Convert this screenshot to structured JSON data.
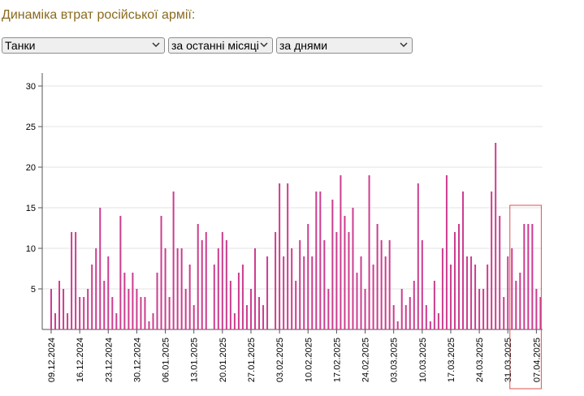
{
  "title": "Динаміка втрат російської армії:",
  "filters": {
    "category": "Танки",
    "period": "за останні місяці",
    "granularity": "за днями"
  },
  "colors": {
    "bar": "#cc3d8f",
    "highlight": "#d9534f",
    "grid": "#e3e3e3",
    "title": "#8a6a1e"
  },
  "chart_data": {
    "type": "bar",
    "ylim": [
      0,
      32
    ],
    "yticks": [
      5,
      10,
      15,
      20,
      25,
      30
    ],
    "grid": true,
    "xticks": [
      {
        "index": 0,
        "label": "09.12.2024"
      },
      {
        "index": 7,
        "label": "16.12.2024"
      },
      {
        "index": 14,
        "label": "23.12.2024"
      },
      {
        "index": 21,
        "label": "30.12.2024"
      },
      {
        "index": 28,
        "label": "06.01.2025"
      },
      {
        "index": 35,
        "label": "13.01.2025"
      },
      {
        "index": 42,
        "label": "20.01.2025"
      },
      {
        "index": 49,
        "label": "27.01.2025"
      },
      {
        "index": 56,
        "label": "03.02.2025"
      },
      {
        "index": 63,
        "label": "10.02.2025"
      },
      {
        "index": 70,
        "label": "17.02.2025"
      },
      {
        "index": 77,
        "label": "24.02.2025"
      },
      {
        "index": 84,
        "label": "03.03.2025"
      },
      {
        "index": 91,
        "label": "10.03.2025"
      },
      {
        "index": 98,
        "label": "17.03.2025"
      },
      {
        "index": 105,
        "label": "24.03.2025"
      },
      {
        "index": 112,
        "label": "31.03.2025"
      },
      {
        "index": 119,
        "label": "07.04.2025"
      }
    ],
    "values": [
      5,
      2,
      6,
      5,
      2,
      12,
      12,
      4,
      4,
      5,
      8,
      10,
      15,
      6,
      9,
      4,
      2,
      14,
      7,
      5,
      7,
      5,
      4,
      4,
      1,
      2,
      7,
      14,
      10,
      4,
      17,
      10,
      10,
      5,
      8,
      3,
      13,
      11,
      12,
      0,
      8,
      10,
      12,
      11,
      6,
      2,
      7,
      8,
      3,
      5,
      10,
      4,
      3,
      9,
      0,
      12,
      18,
      9,
      18,
      10,
      6,
      11,
      9,
      13,
      9,
      17,
      17,
      11,
      5,
      16,
      12,
      19,
      14,
      12,
      15,
      7,
      9,
      5,
      19,
      8,
      13,
      11,
      9,
      11,
      3,
      1,
      5,
      3,
      4,
      6,
      18,
      11,
      3,
      1,
      6,
      2,
      10,
      19,
      8,
      12,
      13,
      17,
      9,
      9,
      8,
      5,
      5,
      8,
      17,
      23,
      14,
      4,
      9,
      10,
      6,
      7,
      13,
      13,
      13,
      5,
      4
    ],
    "highlight_range": [
      113,
      120
    ]
  }
}
